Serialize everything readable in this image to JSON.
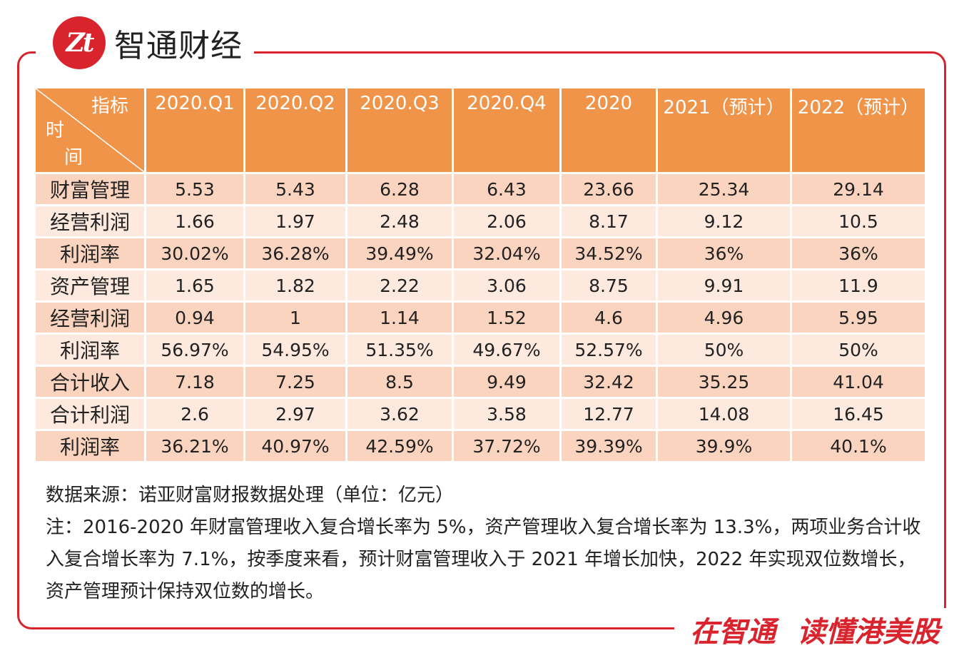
{
  "brand": {
    "logo_text": "Zt",
    "name": "智通财经"
  },
  "table": {
    "corner": {
      "top": "指标",
      "left_line1": "时",
      "left_line2": "间"
    },
    "headers": [
      "2020.Q1",
      "2020.Q2",
      "2020.Q3",
      "2020.Q4",
      "2020",
      "2021（预计）",
      "2022（预计）"
    ],
    "rows": [
      {
        "label": "财富管理",
        "values": [
          "5.53",
          "5.43",
          "6.28",
          "6.43",
          "23.66",
          "25.34",
          "29.14"
        ]
      },
      {
        "label": "经营利润",
        "values": [
          "1.66",
          "1.97",
          "2.48",
          "2.06",
          "8.17",
          "9.12",
          "10.5"
        ]
      },
      {
        "label": "利润率",
        "values": [
          "30.02%",
          "36.28%",
          "39.49%",
          "32.04%",
          "34.52%",
          "36%",
          "36%"
        ]
      },
      {
        "label": "资产管理",
        "values": [
          "1.65",
          "1.82",
          "2.22",
          "3.06",
          "8.75",
          "9.91",
          "11.9"
        ]
      },
      {
        "label": "经营利润",
        "values": [
          "0.94",
          "1",
          "1.14",
          "1.52",
          "4.6",
          "4.96",
          "5.95"
        ]
      },
      {
        "label": "利润率",
        "values": [
          "56.97%",
          "54.95%",
          "51.35%",
          "49.67%",
          "52.57%",
          "50%",
          "50%"
        ]
      },
      {
        "label": "合计收入",
        "values": [
          "7.18",
          "7.25",
          "8.5",
          "9.49",
          "32.42",
          "35.25",
          "41.04"
        ]
      },
      {
        "label": "合计利润",
        "values": [
          "2.6",
          "2.97",
          "3.62",
          "3.58",
          "12.77",
          "14.08",
          "16.45"
        ]
      },
      {
        "label": "利润率",
        "values": [
          "36.21%",
          "40.97%",
          "42.59%",
          "37.72%",
          "39.39%",
          "39.9%",
          "40.1%"
        ]
      }
    ]
  },
  "notes": {
    "source": "数据来源：诺亚财富财报数据处理（单位：亿元）",
    "remark": "注：2016-2020 年财富管理收入复合增长率为 5%，资产管理收入复合增长率为 13.3%，两项业务合计收入复合增长率为 7.1%，按季度来看，预计财富管理收入于 2021 年增长加快，2022 年实现双位数增长，资产管理预计保持双位数的增长。"
  },
  "slogan": {
    "part1": "在智通",
    "part2": "读懂港美股"
  },
  "colors": {
    "brand_red": "#d9232d",
    "header_orange": "#f0944a",
    "row_dark": "#fbd4c0",
    "row_light": "#fde9de"
  }
}
